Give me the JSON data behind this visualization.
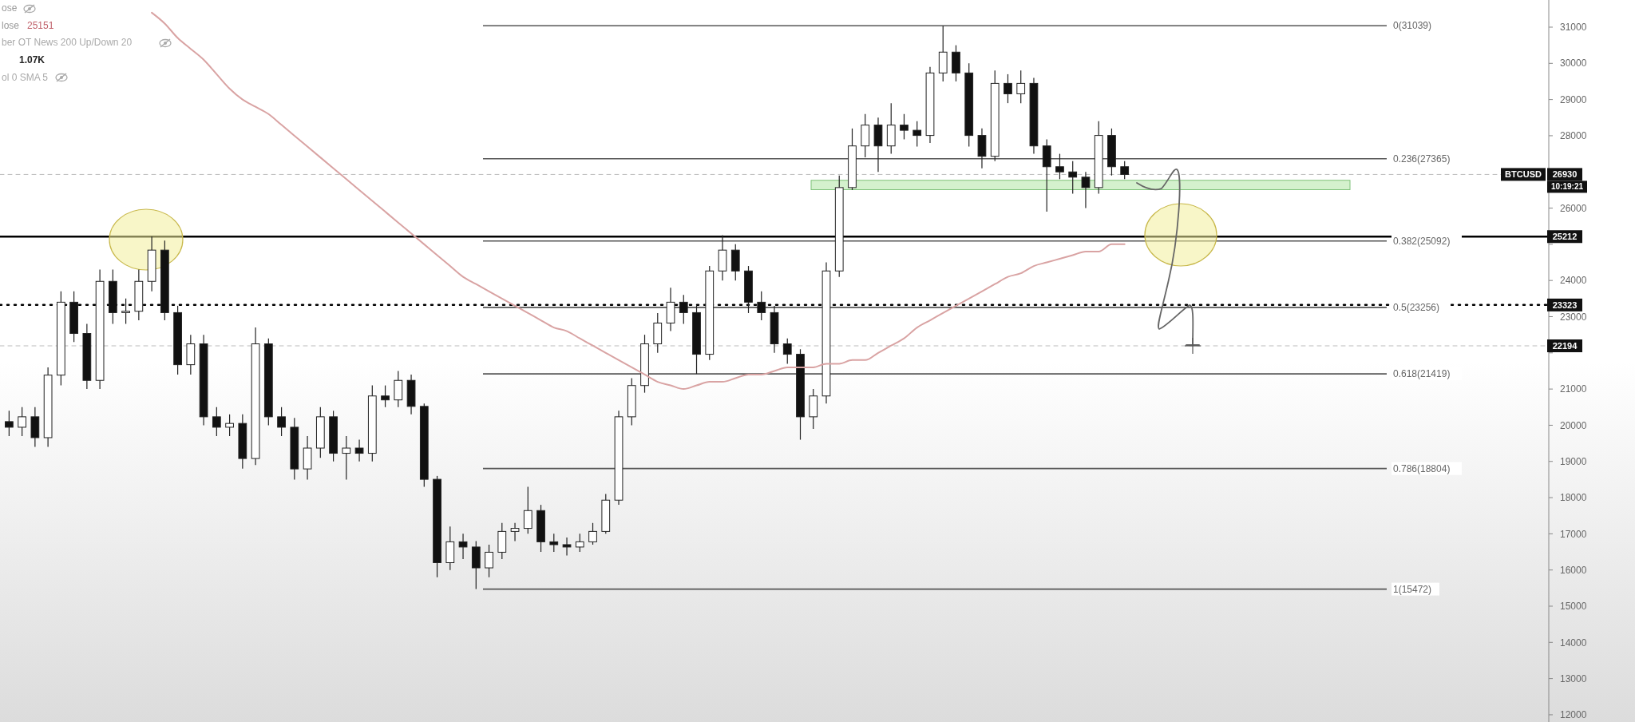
{
  "chart_data": {
    "type": "candlestick",
    "categories": [
      null,
      null,
      null,
      null,
      null,
      null,
      null,
      null,
      null,
      null,
      null,
      null,
      null,
      null,
      null,
      null,
      null,
      null,
      null,
      null,
      null,
      null,
      null,
      null,
      null,
      null,
      null,
      null,
      null,
      null,
      null,
      null,
      null,
      null,
      null,
      null,
      null,
      null,
      null,
      null,
      null,
      null,
      null,
      null,
      null,
      null,
      null,
      null,
      null,
      null,
      null,
      null,
      null,
      null,
      null,
      null,
      null,
      null,
      null,
      null,
      null,
      null,
      null,
      null,
      null,
      null,
      null,
      null,
      null,
      null,
      null,
      null,
      null,
      null,
      null,
      null,
      null,
      null,
      null,
      null,
      null,
      null,
      null,
      null,
      null,
      null,
      null,
      null,
      null,
      null,
      null,
      null,
      null,
      null,
      null,
      null,
      null,
      null,
      null,
      null,
      null,
      null,
      null,
      null,
      null,
      null,
      null,
      null,
      null,
      null,
      null,
      null,
      null,
      null,
      null,
      null,
      null,
      null,
      null
    ],
    "ohlc": [
      [
        20100,
        20400,
        19700,
        19945
      ],
      [
        19945,
        20500,
        19700,
        20233
      ],
      [
        20233,
        20500,
        19400,
        19657
      ],
      [
        19657,
        21600,
        19400,
        21385
      ],
      [
        21385,
        23700,
        21100,
        23400
      ],
      [
        23400,
        23700,
        22300,
        22536
      ],
      [
        22536,
        22800,
        21000,
        21240
      ],
      [
        21240,
        24300,
        21000,
        23976
      ],
      [
        23976,
        24300,
        22800,
        23112
      ],
      [
        23112,
        23500,
        22800,
        23150
      ],
      [
        23150,
        24300,
        22900,
        23976
      ],
      [
        23976,
        25212,
        23700,
        24839
      ],
      [
        24839,
        25100,
        22900,
        23112
      ],
      [
        23112,
        23300,
        21400,
        21673
      ],
      [
        21673,
        22500,
        21400,
        22249
      ],
      [
        22249,
        22500,
        20000,
        20233
      ],
      [
        20233,
        20500,
        19700,
        19945
      ],
      [
        19945,
        20300,
        19700,
        20050
      ],
      [
        20050,
        20300,
        18800,
        19081
      ],
      [
        19081,
        22700,
        18900,
        22249
      ],
      [
        22249,
        22400,
        20000,
        20233
      ],
      [
        20233,
        20500,
        19700,
        19945
      ],
      [
        19945,
        20200,
        18500,
        18793
      ],
      [
        18793,
        19700,
        18500,
        19369
      ],
      [
        19369,
        20500,
        19100,
        20233
      ],
      [
        20233,
        20400,
        19000,
        19225
      ],
      [
        19225,
        19700,
        18500,
        19369
      ],
      [
        19369,
        19600,
        19000,
        19225
      ],
      [
        19225,
        21100,
        19000,
        20809
      ],
      [
        20809,
        21100,
        20500,
        20700
      ],
      [
        20700,
        21500,
        20500,
        21240
      ],
      [
        21240,
        21400,
        20300,
        20521
      ],
      [
        20521,
        20600,
        18300,
        18506
      ],
      [
        18506,
        18600,
        15800,
        16203
      ],
      [
        16203,
        17200,
        16000,
        16779
      ],
      [
        16779,
        17000,
        16300,
        16635
      ],
      [
        16635,
        16800,
        15472,
        16059
      ],
      [
        16059,
        16700,
        15800,
        16491
      ],
      [
        16491,
        17300,
        16300,
        17066
      ],
      [
        17066,
        17300,
        16800,
        17150
      ],
      [
        17150,
        18300,
        17000,
        17642
      ],
      [
        17642,
        17800,
        16500,
        16779
      ],
      [
        16779,
        17000,
        16500,
        16700
      ],
      [
        16700,
        16900,
        16400,
        16635
      ],
      [
        16635,
        17000,
        16500,
        16779
      ],
      [
        16779,
        17300,
        16700,
        17066
      ],
      [
        17066,
        18100,
        17000,
        17930
      ],
      [
        17930,
        20400,
        17800,
        20233
      ],
      [
        20233,
        21300,
        20000,
        21097
      ],
      [
        21097,
        22500,
        20900,
        22249
      ],
      [
        22249,
        23100,
        22000,
        22824
      ],
      [
        22824,
        23800,
        22600,
        23400
      ],
      [
        23400,
        23600,
        22800,
        23112
      ],
      [
        23112,
        23300,
        21419,
        21961
      ],
      [
        21961,
        24400,
        21800,
        24263
      ],
      [
        24263,
        25250,
        24000,
        24839
      ],
      [
        24839,
        25000,
        24000,
        24263
      ],
      [
        24263,
        24400,
        23100,
        23400
      ],
      [
        23400,
        23700,
        22900,
        23112
      ],
      [
        23112,
        23300,
        22000,
        22249
      ],
      [
        22249,
        22400,
        21700,
        21961
      ],
      [
        21961,
        22100,
        19600,
        20233
      ],
      [
        20233,
        21000,
        19900,
        20809
      ],
      [
        20809,
        24500,
        20600,
        24263
      ],
      [
        24263,
        26900,
        24100,
        26567
      ],
      [
        26567,
        28200,
        26500,
        27718
      ],
      [
        27718,
        28600,
        27400,
        28294
      ],
      [
        28294,
        28500,
        27000,
        27718
      ],
      [
        27718,
        28900,
        27500,
        28294
      ],
      [
        28294,
        28600,
        27900,
        28150
      ],
      [
        28150,
        28400,
        27700,
        28007
      ],
      [
        28007,
        29900,
        27800,
        29734
      ],
      [
        29734,
        31039,
        29500,
        30310
      ],
      [
        30310,
        30500,
        29500,
        29734
      ],
      [
        29734,
        30000,
        27700,
        28007
      ],
      [
        28007,
        28200,
        27100,
        27431
      ],
      [
        27431,
        29800,
        27300,
        29446
      ],
      [
        29446,
        29700,
        28900,
        29158
      ],
      [
        29158,
        29800,
        28900,
        29446
      ],
      [
        29446,
        29600,
        27500,
        27718
      ],
      [
        27718,
        27900,
        25900,
        27143
      ],
      [
        27143,
        27500,
        26800,
        27000
      ],
      [
        27000,
        27300,
        26400,
        26855
      ],
      [
        26855,
        27000,
        26000,
        26567
      ],
      [
        26567,
        28400,
        26400,
        28007
      ],
      [
        28007,
        28200,
        26900,
        27143
      ],
      [
        27143,
        27300,
        26800,
        26930
      ],
      null,
      null,
      null,
      null,
      null,
      null,
      null,
      null,
      null,
      null,
      null,
      null,
      null,
      null,
      null,
      null,
      null,
      null,
      null,
      null,
      null,
      null,
      null,
      null,
      null,
      null,
      null,
      null,
      null,
      null,
      null,
      null
    ],
    "series": [
      {
        "type": "line",
        "color": "#d9a3a3",
        "values": [
          null,
          null,
          null,
          null,
          null,
          null,
          null,
          null,
          null,
          null,
          null,
          31400,
          31100,
          30700,
          30400,
          30100,
          29700,
          29300,
          29000,
          28800,
          28600,
          28300,
          28000,
          27700,
          27400,
          27100,
          26800,
          26500,
          26200,
          25900,
          25600,
          25300,
          25000,
          24700,
          24400,
          24100,
          23900,
          23700,
          23500,
          23300,
          23100,
          22900,
          22700,
          22600,
          22400,
          22200,
          22000,
          21800,
          21600,
          21400,
          21200,
          21100,
          21000,
          21100,
          21200,
          21200,
          21300,
          21400,
          21400,
          21500,
          21600,
          21600,
          21600,
          21700,
          21700,
          21800,
          21800,
          22000,
          22200,
          22400,
          22700,
          22900,
          23100,
          23300,
          23500,
          23700,
          23900,
          24100,
          24200,
          24400,
          24500,
          24600,
          24700,
          24800,
          24800,
          25000,
          25000,
          null,
          null,
          null,
          null,
          null,
          null,
          null,
          null,
          null,
          null,
          null,
          null,
          null,
          null,
          null,
          null,
          null,
          null,
          null,
          null,
          null,
          null,
          null,
          null,
          null,
          null,
          null,
          null,
          null,
          null,
          null,
          null
        ]
      }
    ],
    "ylim": [
      11800,
      31750
    ],
    "yticks": [
      12000,
      13000,
      14000,
      15000,
      16000,
      17000,
      18000,
      19000,
      20000,
      21000,
      {
        "value": 22000,
        "label": null
      },
      23000,
      24000,
      {
        "value": 25000,
        "label": null
      },
      26000,
      {
        "value": 27000,
        "label": null
      },
      28000,
      29000,
      30000,
      31000
    ],
    "ref_lines": [
      {
        "axis": "y",
        "value": 31039,
        "label": "0(31039)",
        "color": "#555555",
        "line_style": "solid"
      },
      {
        "axis": "y",
        "value": 27365,
        "label": "0.236(27365)",
        "color": "#555555",
        "line_style": "solid"
      },
      {
        "axis": "y",
        "value": 25092,
        "label": "0.382(25092)",
        "color": "#555555",
        "line_style": "solid"
      },
      {
        "axis": "y",
        "value": 23256,
        "label": "0.5(23256)",
        "color": "#555555",
        "line_style": "solid"
      },
      {
        "axis": "y",
        "value": 21419,
        "label": "0.618(21419)",
        "color": "#555555",
        "line_style": "solid"
      },
      {
        "axis": "y",
        "value": 18804,
        "label": "0.786(18804)",
        "color": "#555555",
        "line_style": "solid"
      },
      {
        "axis": "y",
        "value": 15472,
        "label": "1(15472)",
        "color": "#555555",
        "line_style": "solid"
      },
      {
        "axis": "y",
        "value": 25212,
        "label": "25212",
        "color": "#000000",
        "line_style": "solid"
      },
      {
        "axis": "y",
        "value": 23323,
        "label": "23323",
        "color": "#000000",
        "line_style": "dotted"
      },
      {
        "axis": "y",
        "value": 26930,
        "label": "26930",
        "color": "#bbbbbb",
        "line_style": "dashed"
      },
      {
        "axis": "y",
        "value": 22194,
        "label": "22194",
        "color": "#bbbbbb",
        "line_style": "dashed"
      }
    ],
    "bands": [
      {
        "axis": "y",
        "from": 26509,
        "to": 26768,
        "color": "#cdeec4"
      }
    ],
    "annotations": [
      "ose",
      "lose",
      "25151",
      "ber OT News 200 Up/Down 20",
      "1.07K",
      "ol 0 SMA 5",
      "BTCUSD",
      "10:19:21"
    ]
  }
}
